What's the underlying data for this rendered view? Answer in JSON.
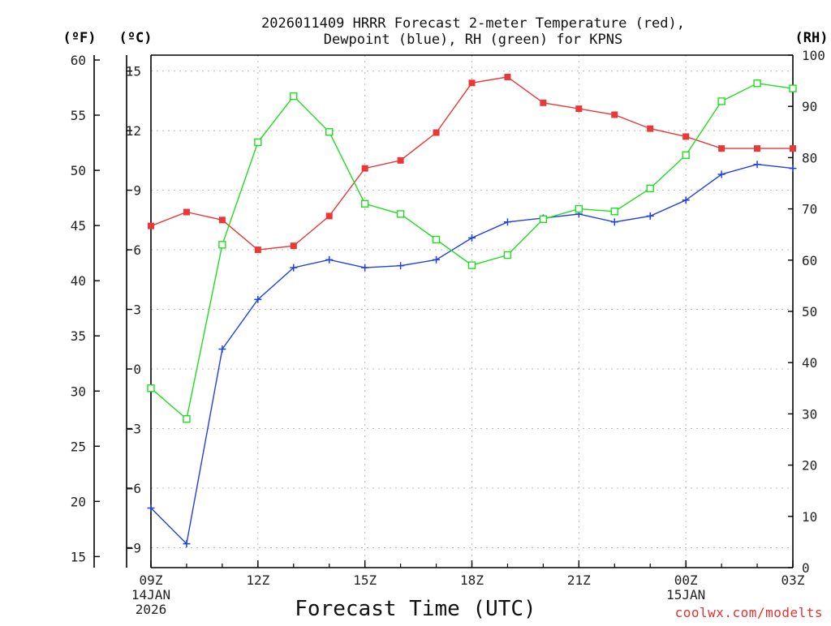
{
  "chart_data": {
    "type": "line",
    "title_lines": [
      "2026011409 HRRR Forecast 2-meter Temperature (red),",
      "Dewpoint (blue), RH (green) for KPNS"
    ],
    "unit_labels": {
      "fahrenheit": "(ºF)",
      "celsius": "(ºC)",
      "rh": "(RH)"
    },
    "xlabel": "Forecast Time (UTC)",
    "credit": "coolwx.com/modelts",
    "x": [
      "09Z",
      "10Z",
      "11Z",
      "12Z",
      "13Z",
      "14Z",
      "15Z",
      "16Z",
      "17Z",
      "18Z",
      "19Z",
      "20Z",
      "21Z",
      "22Z",
      "23Z",
      "00Z",
      "01Z",
      "02Z",
      "03Z"
    ],
    "x_ticks": [
      {
        "label": "09Z",
        "sub": [
          "14JAN",
          "2026"
        ]
      },
      {
        "label": "12Z",
        "sub": []
      },
      {
        "label": "15Z",
        "sub": []
      },
      {
        "label": "18Z",
        "sub": []
      },
      {
        "label": "21Z",
        "sub": []
      },
      {
        "label": "00Z",
        "sub": [
          "15JAN"
        ]
      },
      {
        "label": "03Z",
        "sub": []
      }
    ],
    "celsius_axis": {
      "min": -10,
      "max": 15.8,
      "ticks": [
        "15",
        "12",
        "9",
        "6",
        "3",
        "0",
        "−3",
        "−6",
        "−9"
      ]
    },
    "fahrenheit_axis": {
      "min": 14,
      "max": 60.44,
      "ticks": [
        "60",
        "55",
        "50",
        "45",
        "40",
        "35",
        "30",
        "25",
        "20",
        "15"
      ]
    },
    "rh_axis": {
      "min": 0,
      "max": 100,
      "ticks": [
        "100",
        "90",
        "80",
        "70",
        "60",
        "50",
        "40",
        "30",
        "20",
        "10",
        "0"
      ]
    },
    "grid": true,
    "series": [
      {
        "name": "Temperature",
        "axis": "celsius",
        "color": "#e83838",
        "marker": "filled-square",
        "values": [
          7.2,
          7.9,
          7.5,
          6.0,
          6.2,
          7.7,
          10.1,
          10.5,
          11.9,
          14.4,
          14.7,
          13.4,
          13.1,
          12.8,
          12.1,
          11.7,
          11.1,
          11.1,
          11.1
        ]
      },
      {
        "name": "Dewpoint",
        "axis": "celsius",
        "color": "#2040e0",
        "marker": "plus",
        "values": [
          -7.0,
          -8.8,
          1.0,
          3.5,
          5.1,
          5.5,
          5.1,
          5.2,
          5.5,
          6.6,
          7.4,
          7.6,
          7.8,
          7.4,
          7.7,
          8.5,
          9.8,
          10.3,
          10.1
        ]
      },
      {
        "name": "RH",
        "axis": "rh",
        "color": "#20dd20",
        "marker": "open-square",
        "values": [
          35,
          29,
          63,
          83,
          92,
          85,
          71,
          69,
          64,
          59,
          61,
          68,
          70,
          69.5,
          74,
          80.5,
          91,
          94.5,
          93.5
        ]
      }
    ]
  }
}
